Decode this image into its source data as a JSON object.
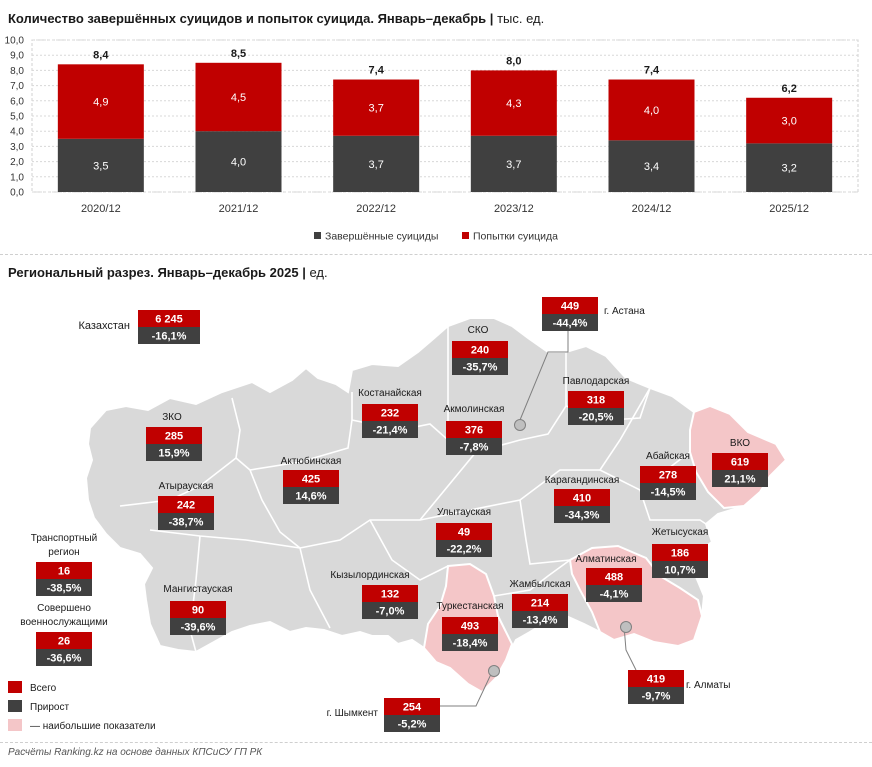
{
  "header": {
    "title": "Количество завершённых суицидов и попыток суицида. Январь–декабрь",
    "unit": "тыс. ед."
  },
  "chart_data": {
    "type": "bar",
    "stacked": true,
    "categories": [
      "2020/12",
      "2021/12",
      "2022/12",
      "2023/12",
      "2024/12",
      "2025/12"
    ],
    "series": [
      {
        "name": "Завершённые суициды",
        "values": [
          3.5,
          4.0,
          3.7,
          3.7,
          3.4,
          3.2
        ],
        "labels": [
          "3,5",
          "4,0",
          "3,7",
          "3,7",
          "3,4",
          "3,2"
        ],
        "color": "#404040"
      },
      {
        "name": "Попытки суицида",
        "values": [
          4.9,
          4.5,
          3.7,
          4.3,
          4.0,
          3.0
        ],
        "labels": [
          "4,9",
          "4,5",
          "3,7",
          "4,3",
          "4,0",
          "3,0"
        ],
        "color": "#c00000"
      }
    ],
    "totals": [
      "8,4",
      "8,5",
      "7,4",
      "8,0",
      "7,4",
      "6,2"
    ],
    "ylim": [
      0,
      10
    ],
    "yticks": [
      0,
      1,
      2,
      3,
      4,
      5,
      6,
      7,
      8,
      9,
      10
    ],
    "ytick_labels": [
      "0,0",
      "1,0",
      "2,0",
      "3,0",
      "4,0",
      "5,0",
      "6,0",
      "7,0",
      "8,0",
      "9,0",
      "10,0"
    ],
    "grid": true,
    "legend_position": "bottom"
  },
  "regional": {
    "title": "Региональный разрез. Январь–декабрь 2025",
    "unit": "ед.",
    "kazakhstan": {
      "name": "Казахстан",
      "total": "6 245",
      "growth": "-16,1%"
    },
    "regions": [
      {
        "name": "СКО",
        "total": "240",
        "growth": "-35,7%"
      },
      {
        "name": "г. Астана",
        "total": "449",
        "growth": "-44,4%"
      },
      {
        "name": "Костанайская",
        "total": "232",
        "growth": "-21,4%"
      },
      {
        "name": "Акмолинская",
        "total": "376",
        "growth": "-7,8%"
      },
      {
        "name": "Павлодарская",
        "total": "318",
        "growth": "-20,5%"
      },
      {
        "name": "ЗКО",
        "total": "285",
        "growth": "15,9%"
      },
      {
        "name": "ВКО",
        "total": "619",
        "growth": "21,1%"
      },
      {
        "name": "Актюбинская",
        "total": "425",
        "growth": "14,6%"
      },
      {
        "name": "Абайская",
        "total": "278",
        "growth": "-14,5%"
      },
      {
        "name": "Атырауская",
        "total": "242",
        "growth": "-38,7%"
      },
      {
        "name": "Карагандинская",
        "total": "410",
        "growth": "-34,3%"
      },
      {
        "name": "Улытауская",
        "total": "49",
        "growth": "-22,2%"
      },
      {
        "name": "Жетысуская",
        "total": "186",
        "growth": "10,7%"
      },
      {
        "name": "Алматинская",
        "total": "488",
        "growth": "-4,1%"
      },
      {
        "name": "Кызылординская",
        "total": "132",
        "growth": "-7,0%"
      },
      {
        "name": "Мангистауская",
        "total": "90",
        "growth": "-39,6%"
      },
      {
        "name": "Жамбылская",
        "total": "214",
        "growth": "-13,4%"
      },
      {
        "name": "Туркестанская",
        "total": "493",
        "growth": "-18,4%"
      },
      {
        "name": "г. Алматы",
        "total": "419",
        "growth": "-9,7%"
      },
      {
        "name": "г. Шымкент",
        "total": "254",
        "growth": "-5,2%"
      }
    ],
    "special": [
      {
        "name_lines": [
          "Транспортный",
          "регион"
        ],
        "total": "16",
        "growth": "-38,5%"
      },
      {
        "name_lines": [
          "Совершено",
          "военнослужащими"
        ],
        "total": "26",
        "growth": "-36,6%"
      }
    ],
    "legend": {
      "total": "Всего",
      "growth": "Прирост",
      "highlight": "— наибольшие показатели"
    },
    "colors": {
      "total": "#c00000",
      "growth": "#404040",
      "highlight": "#f4c6c8",
      "map": "#d9d9d9"
    }
  },
  "footer": "Расчёты Ranking.kz на основе данных КПСиСУ ГП РК"
}
